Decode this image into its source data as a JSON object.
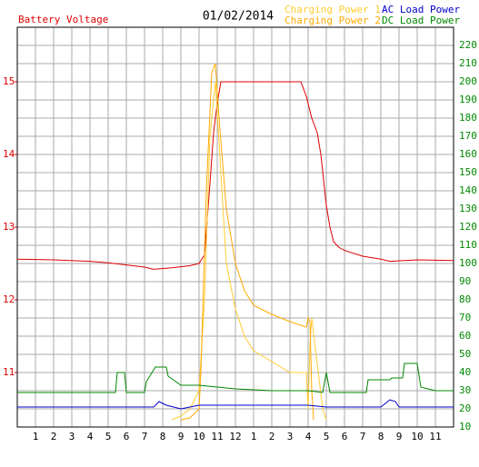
{
  "chart_data": {
    "type": "line",
    "date": "01/02/2014",
    "grid": true,
    "xlim": [
      0,
      24
    ],
    "xticks": [
      {
        "value": 1,
        "label": "1"
      },
      {
        "value": 2,
        "label": "2"
      },
      {
        "value": 3,
        "label": "3"
      },
      {
        "value": 4,
        "label": "4"
      },
      {
        "value": 5,
        "label": "5"
      },
      {
        "value": 6,
        "label": "6"
      },
      {
        "value": 7,
        "label": "7"
      },
      {
        "value": 8,
        "label": "8"
      },
      {
        "value": 9,
        "label": "9"
      },
      {
        "value": 10,
        "label": "10"
      },
      {
        "value": 11,
        "label": "11"
      },
      {
        "value": 12,
        "label": "12"
      },
      {
        "value": 13,
        "label": "1"
      },
      {
        "value": 14,
        "label": "2"
      },
      {
        "value": 15,
        "label": "3"
      },
      {
        "value": 16,
        "label": "4"
      },
      {
        "value": 17,
        "label": "5"
      },
      {
        "value": 18,
        "label": "6"
      },
      {
        "value": 19,
        "label": "7"
      },
      {
        "value": 20,
        "label": "8"
      },
      {
        "value": 21,
        "label": "9"
      },
      {
        "value": 22,
        "label": "10"
      },
      {
        "value": 23,
        "label": "11"
      }
    ],
    "ylim": [
      10.25,
      15.75
    ],
    "yticks": [
      11,
      12,
      13,
      14,
      15
    ],
    "y2lim": [
      10,
      230
    ],
    "y2ticks": [
      10,
      20,
      30,
      40,
      50,
      60,
      70,
      80,
      90,
      100,
      110,
      120,
      130,
      140,
      150,
      160,
      170,
      180,
      190,
      200,
      210,
      220
    ],
    "series": [
      {
        "name": "Battery Voltage",
        "color": "#dd0000",
        "x": [
          0,
          2,
          4,
          5,
          6,
          7,
          7.5,
          8.5,
          9.5,
          10,
          10.3,
          10.6,
          10.8,
          11,
          11.2,
          13,
          15.6,
          15.9,
          16.2,
          16.5,
          16.7,
          17,
          17.2,
          17.4,
          17.7,
          18,
          19,
          20,
          20.5,
          22,
          24
        ],
        "values": [
          12.56,
          12.55,
          12.53,
          12.51,
          12.48,
          12.45,
          12.42,
          12.44,
          12.47,
          12.5,
          12.62,
          13.6,
          14.3,
          14.7,
          15,
          15,
          15,
          14.8,
          14.5,
          14.3,
          14,
          13.3,
          13,
          12.8,
          12.72,
          12.68,
          12.6,
          12.56,
          12.53,
          12.55,
          12.54
        ]
      },
      {
        "name": "Charging Power 1",
        "color": "#ffcc33",
        "axis": "y2",
        "x": [
          8.5,
          9,
          9.5,
          10,
          10.3,
          10.6,
          10.9,
          11.2,
          11.5,
          12,
          12.5,
          13,
          14,
          15,
          15.9,
          16,
          16.1,
          16.2,
          16.5,
          16.8,
          17
        ],
        "values": [
          14,
          16,
          20,
          30,
          80,
          170,
          200,
          150,
          100,
          75,
          60,
          52,
          46,
          40,
          40,
          20,
          55,
          70,
          45,
          20,
          14
        ]
      },
      {
        "name": "Charging Power 2",
        "color": "#ffaa00",
        "axis": "y2",
        "x": [
          9,
          9.5,
          10,
          10.1,
          10.4,
          10.7,
          10.9,
          11.1,
          11.5,
          12,
          12.5,
          13,
          14,
          15,
          15.9,
          16,
          16.1,
          16.2,
          16.3
        ],
        "values": [
          14,
          15,
          20,
          40,
          140,
          205,
          210,
          180,
          130,
          100,
          85,
          77,
          72,
          68,
          65,
          70,
          68,
          30,
          14
        ]
      },
      {
        "name": "AC Load Power",
        "color": "#0000cc",
        "axis": "y2",
        "x": [
          0,
          5,
          7.5,
          7.8,
          8.2,
          9,
          10,
          12,
          14,
          16,
          17,
          18,
          20,
          20.5,
          20.8,
          21,
          24
        ],
        "values": [
          21,
          21,
          21,
          24,
          22,
          20,
          22,
          22,
          22,
          22,
          21,
          21,
          21,
          25,
          24,
          21,
          21
        ]
      },
      {
        "name": "DC Load Power",
        "color": "#008800",
        "axis": "y2",
        "x": [
          0,
          5.4,
          5.5,
          5.9,
          6,
          7,
          7.1,
          7.6,
          8.2,
          8.3,
          9,
          10,
          12,
          14,
          16,
          16.8,
          17,
          17.2,
          18,
          19.2,
          19.3,
          20.5,
          20.6,
          21.2,
          21.3,
          22,
          22.2,
          23,
          24
        ],
        "values": [
          29,
          29,
          40,
          40,
          29,
          29,
          35,
          43,
          43,
          38,
          33,
          33,
          31,
          30,
          30,
          29,
          40,
          29,
          29,
          29,
          36,
          36,
          37,
          37,
          45,
          45,
          32,
          30,
          30
        ]
      }
    ]
  }
}
